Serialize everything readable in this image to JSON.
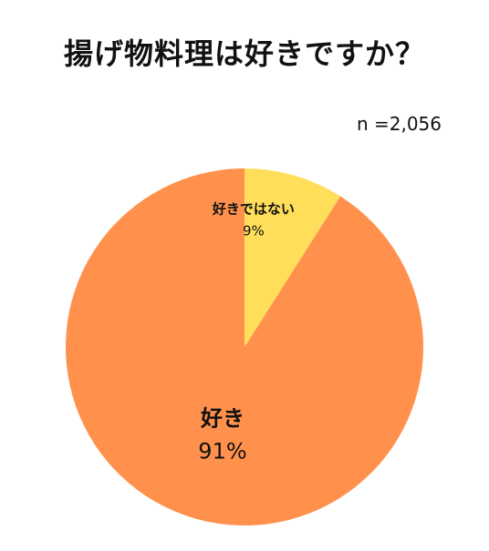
{
  "chart_data": {
    "type": "pie",
    "title": "揚げ物料理は好きですか？",
    "sample_size": "n =2,056",
    "slices": [
      {
        "label": "好き",
        "value": 91,
        "value_label": "91%",
        "color": "#FF914D"
      },
      {
        "label": "好きではない",
        "value": 9,
        "value_label": "9%",
        "color": "#FFDE59"
      }
    ],
    "start_angle_deg": 0,
    "direction": "counterclockwise",
    "legend": "none"
  }
}
